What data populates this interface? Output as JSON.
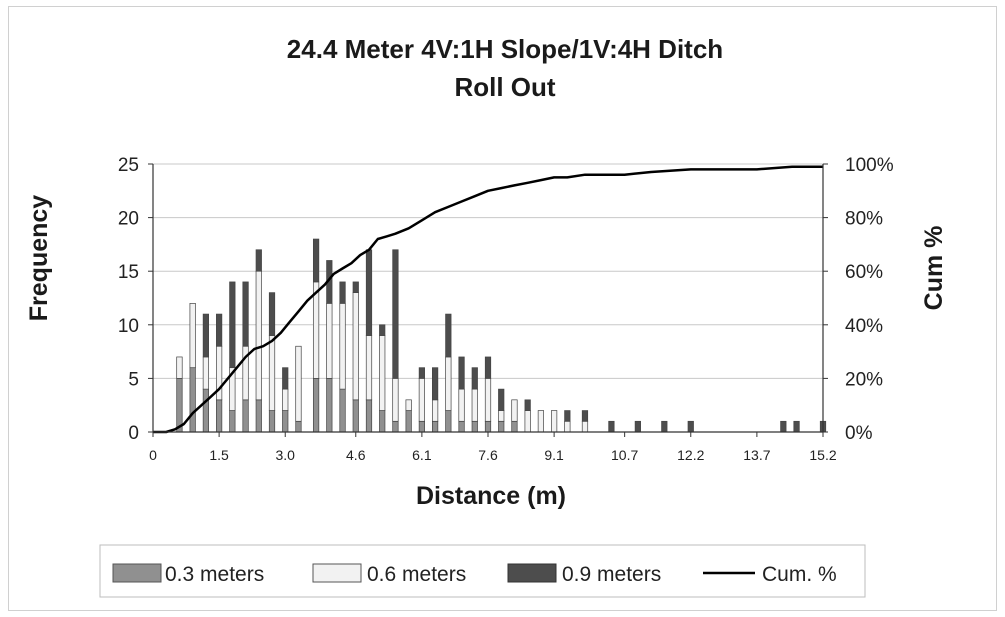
{
  "chart_data": {
    "type": "bar",
    "title": "24.4 Meter 4V:1H Slope/1V:4H Ditch",
    "subtitle": "Roll Out",
    "xlabel": "Distance (m)",
    "ylabel": "Frequency",
    "y2label": "Cum %",
    "ylim": [
      0,
      25
    ],
    "y2lim": [
      0,
      1
    ],
    "yticks": [
      "0",
      "5",
      "10",
      "15",
      "20",
      "25"
    ],
    "y2ticks": [
      "0%",
      "20%",
      "40%",
      "60%",
      "80%",
      "100%"
    ],
    "xticks": [
      "0",
      "1.5",
      "3.0",
      "4.6",
      "6.1",
      "7.6",
      "9.1",
      "10.7",
      "12.2",
      "13.7",
      "15.2"
    ],
    "xlim": [
      0,
      15.2
    ],
    "stacked": true,
    "legend_position": "bottom",
    "categories": [
      0.6,
      0.9,
      1.2,
      1.5,
      1.8,
      2.1,
      2.4,
      2.7,
      3.0,
      3.3,
      3.7,
      4.0,
      4.3,
      4.6,
      4.9,
      5.2,
      5.5,
      5.8,
      6.1,
      6.4,
      6.7,
      7.0,
      7.3,
      7.6,
      7.9,
      8.2,
      8.5,
      8.8,
      9.1,
      9.4,
      9.8,
      10.4,
      11.0,
      11.6,
      12.2,
      14.3,
      14.6,
      15.2
    ],
    "series": [
      {
        "name": "0.3 meters",
        "color": "#909090",
        "values": [
          5,
          6,
          4,
          3,
          2,
          3,
          3,
          2,
          2,
          1,
          5,
          5,
          4,
          3,
          3,
          2,
          1,
          2,
          1,
          1,
          2,
          1,
          1,
          1,
          1,
          1,
          0,
          0,
          0,
          0,
          0,
          0,
          0,
          0,
          0,
          0,
          0,
          0
        ]
      },
      {
        "name": "0.6 meters",
        "color": "#f2f2f2",
        "values": [
          2,
          6,
          3,
          5,
          4,
          5,
          12,
          7,
          2,
          7,
          9,
          7,
          8,
          10,
          6,
          7,
          4,
          1,
          4,
          2,
          5,
          3,
          3,
          4,
          1,
          2,
          2,
          2,
          2,
          1,
          1,
          0,
          0,
          0,
          0,
          0,
          0,
          0
        ]
      },
      {
        "name": "0.9 meters",
        "color": "#4d4d4d",
        "values": [
          0,
          0,
          4,
          3,
          8,
          6,
          2,
          4,
          2,
          0,
          4,
          4,
          2,
          1,
          8,
          1,
          12,
          0,
          1,
          3,
          4,
          3,
          2,
          2,
          2,
          0,
          1,
          0,
          0,
          1,
          1,
          1,
          1,
          1,
          1,
          1,
          1,
          1
        ]
      },
      {
        "name": "Cum. %",
        "color": "#000000",
        "line": true,
        "x": [
          0,
          0.3,
          0.5,
          0.7,
          0.9,
          1.1,
          1.3,
          1.5,
          1.7,
          1.9,
          2.1,
          2.3,
          2.5,
          2.7,
          2.9,
          3.1,
          3.3,
          3.5,
          3.7,
          3.9,
          4.1,
          4.3,
          4.5,
          4.7,
          4.9,
          5.1,
          5.3,
          5.5,
          5.8,
          6.1,
          6.4,
          6.7,
          7.0,
          7.3,
          7.6,
          7.9,
          8.2,
          8.5,
          8.8,
          9.1,
          9.4,
          9.8,
          10.7,
          11.3,
          12.2,
          13.0,
          13.7,
          14.5,
          15.2
        ],
        "values": [
          0,
          0,
          0.01,
          0.03,
          0.07,
          0.1,
          0.13,
          0.16,
          0.2,
          0.24,
          0.28,
          0.31,
          0.32,
          0.34,
          0.37,
          0.41,
          0.45,
          0.49,
          0.52,
          0.55,
          0.59,
          0.61,
          0.63,
          0.66,
          0.68,
          0.72,
          0.73,
          0.74,
          0.76,
          0.79,
          0.82,
          0.84,
          0.86,
          0.88,
          0.9,
          0.91,
          0.92,
          0.93,
          0.94,
          0.95,
          0.95,
          0.96,
          0.96,
          0.97,
          0.98,
          0.98,
          0.98,
          0.99,
          0.99
        ]
      }
    ]
  }
}
